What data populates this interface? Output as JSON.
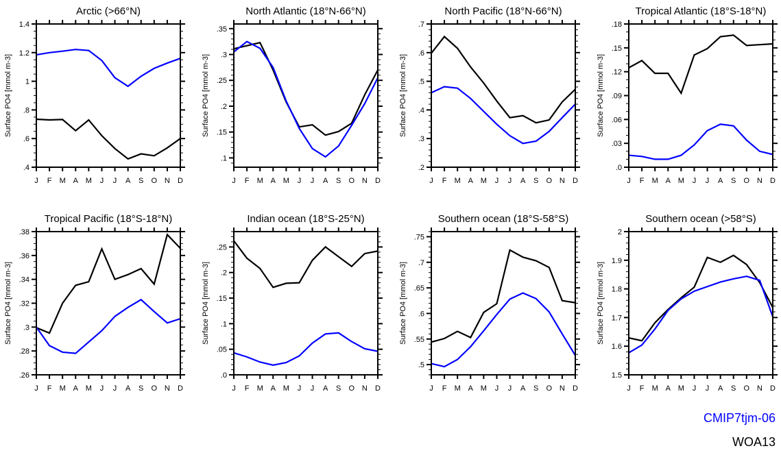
{
  "figure": {
    "months": [
      "J",
      "F",
      "M",
      "A",
      "M",
      "J",
      "J",
      "A",
      "S",
      "O",
      "N",
      "D"
    ],
    "ylabel": "Surface PO4 [mmol m-3]",
    "legend": [
      {
        "name": "CMIP7tjm-06",
        "color": "#0000ff"
      },
      {
        "name": "WOA13",
        "color": "#000000"
      }
    ]
  },
  "chart_data": [
    {
      "type": "line",
      "title": "Arctic (>66°N)",
      "xlabel": "",
      "ylabel": "Surface PO4 [mmol m-3]",
      "categories": [
        "J",
        "F",
        "M",
        "A",
        "M",
        "J",
        "J",
        "A",
        "S",
        "O",
        "N",
        "D"
      ],
      "ylim": [
        0.4,
        1.4
      ],
      "yticks": [
        0.4,
        0.6,
        0.8,
        1.0,
        1.2,
        1.4
      ],
      "ytick_labels": [
        ".4",
        ".6",
        ".8",
        "1",
        "1.2",
        "1.4"
      ],
      "yminor": 0.05,
      "series": [
        {
          "name": "CMIP7tjm-06",
          "color": "#0000ff",
          "values": [
            1.185,
            1.2,
            1.21,
            1.222,
            1.215,
            1.145,
            1.025,
            0.965,
            1.035,
            1.09,
            1.127,
            1.16
          ]
        },
        {
          "name": "WOA13",
          "color": "#000000",
          "values": [
            0.735,
            0.73,
            0.733,
            0.655,
            0.73,
            0.62,
            0.53,
            0.458,
            0.493,
            0.48,
            0.535,
            0.6
          ]
        }
      ]
    },
    {
      "type": "line",
      "title": "North Atlantic (18°N-66°N)",
      "xlabel": "",
      "ylabel": "Surface PO4 [mmol m-3]",
      "categories": [
        "J",
        "F",
        "M",
        "A",
        "M",
        "J",
        "J",
        "A",
        "S",
        "O",
        "N",
        "D"
      ],
      "ylim": [
        0.082,
        0.359
      ],
      "yticks": [
        0.1,
        0.15,
        0.2,
        0.25,
        0.3,
        0.35
      ],
      "ytick_labels": [
        ".1",
        ".15",
        ".2",
        ".25",
        ".3",
        ".35"
      ],
      "yminor": 0.01,
      "series": [
        {
          "name": "CMIP7tjm-06",
          "color": "#0000ff",
          "values": [
            0.305,
            0.325,
            0.312,
            0.275,
            0.21,
            0.157,
            0.118,
            0.102,
            0.123,
            0.163,
            0.205,
            0.255
          ]
        },
        {
          "name": "WOA13",
          "color": "#000000",
          "values": [
            0.311,
            0.317,
            0.323,
            0.27,
            0.208,
            0.16,
            0.164,
            0.144,
            0.151,
            0.167,
            0.222,
            0.27
          ]
        }
      ]
    },
    {
      "type": "line",
      "title": "North Pacific (18°N-66°N)",
      "xlabel": "",
      "ylabel": "Surface PO4 [mmol m-3]",
      "categories": [
        "J",
        "F",
        "M",
        "A",
        "M",
        "J",
        "J",
        "A",
        "S",
        "O",
        "N",
        "D"
      ],
      "ylim": [
        0.2,
        0.7
      ],
      "yticks": [
        0.2,
        0.3,
        0.4,
        0.5,
        0.6,
        0.7
      ],
      "ytick_labels": [
        ".2",
        ".3",
        ".4",
        ".5",
        ".6",
        ".7"
      ],
      "yminor": 0.02,
      "series": [
        {
          "name": "CMIP7tjm-06",
          "color": "#0000ff",
          "values": [
            0.46,
            0.481,
            0.476,
            0.44,
            0.395,
            0.35,
            0.31,
            0.283,
            0.291,
            0.325,
            0.373,
            0.42
          ]
        },
        {
          "name": "WOA13",
          "color": "#000000",
          "values": [
            0.598,
            0.656,
            0.615,
            0.55,
            0.494,
            0.431,
            0.373,
            0.38,
            0.355,
            0.365,
            0.428,
            0.472
          ]
        }
      ]
    },
    {
      "type": "line",
      "title": "Tropical Atlantic (18°S-18°N)",
      "xlabel": "",
      "ylabel": "Surface PO4 [mmol m-3]",
      "categories": [
        "J",
        "F",
        "M",
        "A",
        "M",
        "J",
        "J",
        "A",
        "S",
        "O",
        "N",
        "D"
      ],
      "ylim": [
        0.0,
        0.18
      ],
      "yticks": [
        0.0,
        0.03,
        0.06,
        0.09,
        0.12,
        0.15,
        0.18
      ],
      "ytick_labels": [
        ".0",
        ".03",
        ".06",
        ".09",
        ".12",
        ".15",
        ".18"
      ],
      "yminor": 0.01,
      "series": [
        {
          "name": "CMIP7tjm-06",
          "color": "#0000ff",
          "values": [
            0.015,
            0.0135,
            0.01,
            0.01,
            0.015,
            0.028,
            0.046,
            0.054,
            0.052,
            0.034,
            0.02,
            0.016
          ]
        },
        {
          "name": "WOA13",
          "color": "#000000",
          "values": [
            0.125,
            0.134,
            0.118,
            0.118,
            0.093,
            0.141,
            0.149,
            0.164,
            0.166,
            0.153,
            0.154,
            0.155
          ]
        }
      ]
    },
    {
      "type": "line",
      "title": "Tropical Pacific (18°S-18°N)",
      "xlabel": "",
      "ylabel": "Surface PO4 [mmol m-3]",
      "categories": [
        "J",
        "F",
        "M",
        "A",
        "M",
        "J",
        "J",
        "A",
        "S",
        "O",
        "N",
        "D"
      ],
      "ylim": [
        0.26,
        0.38
      ],
      "yticks": [
        0.26,
        0.28,
        0.3,
        0.32,
        0.34,
        0.36,
        0.38
      ],
      "ytick_labels": [
        ".26",
        ".28",
        ".3",
        ".32",
        ".34",
        ".36",
        ".38"
      ],
      "yminor": 0.005,
      "series": [
        {
          "name": "CMIP7tjm-06",
          "color": "#0000ff",
          "values": [
            0.3,
            0.2845,
            0.279,
            0.278,
            0.2875,
            0.297,
            0.309,
            0.3165,
            0.323,
            0.313,
            0.3035,
            0.307
          ]
        },
        {
          "name": "WOA13",
          "color": "#000000",
          "values": [
            0.2995,
            0.295,
            0.32,
            0.335,
            0.338,
            0.3655,
            0.34,
            0.344,
            0.349,
            0.336,
            0.3775,
            0.366
          ]
        }
      ]
    },
    {
      "type": "line",
      "title": "Indian ocean (18°S-25°N)",
      "xlabel": "",
      "ylabel": "Surface PO4 [mmol m-3]",
      "categories": [
        "J",
        "F",
        "M",
        "A",
        "M",
        "J",
        "J",
        "A",
        "S",
        "O",
        "N",
        "D"
      ],
      "ylim": [
        0.0,
        0.28
      ],
      "yticks": [
        0.0,
        0.05,
        0.1,
        0.15,
        0.2,
        0.25
      ],
      "ytick_labels": [
        ".0",
        ".05",
        ".1",
        ".15",
        ".2",
        ".25"
      ],
      "yminor": 0.01,
      "series": [
        {
          "name": "CMIP7tjm-06",
          "color": "#0000ff",
          "values": [
            0.043,
            0.035,
            0.025,
            0.019,
            0.024,
            0.037,
            0.062,
            0.08,
            0.082,
            0.065,
            0.051,
            0.046
          ]
        },
        {
          "name": "WOA13",
          "color": "#000000",
          "values": [
            0.262,
            0.228,
            0.208,
            0.171,
            0.179,
            0.18,
            0.224,
            0.25,
            0.231,
            0.212,
            0.237,
            0.242
          ]
        }
      ]
    },
    {
      "type": "line",
      "title": "Southern ocean (18°S-58°S)",
      "xlabel": "",
      "ylabel": "Surface PO4 [mmol m-3]",
      "categories": [
        "J",
        "F",
        "M",
        "A",
        "M",
        "J",
        "J",
        "A",
        "S",
        "O",
        "N",
        "D"
      ],
      "ylim": [
        0.48,
        0.76
      ],
      "yticks": [
        0.5,
        0.55,
        0.6,
        0.65,
        0.7,
        0.75
      ],
      "ytick_labels": [
        ".5",
        ".55",
        ".6",
        ".65",
        ".7",
        ".75"
      ],
      "yminor": 0.01,
      "series": [
        {
          "name": "CMIP7tjm-06",
          "color": "#0000ff",
          "values": [
            0.502,
            0.496,
            0.51,
            0.535,
            0.566,
            0.598,
            0.628,
            0.64,
            0.629,
            0.603,
            0.56,
            0.518
          ]
        },
        {
          "name": "WOA13",
          "color": "#000000",
          "values": [
            0.544,
            0.551,
            0.565,
            0.553,
            0.602,
            0.619,
            0.724,
            0.71,
            0.703,
            0.69,
            0.625,
            0.621
          ]
        }
      ]
    },
    {
      "type": "line",
      "title": "Southern ocean (>58°S)",
      "xlabel": "",
      "ylabel": "Surface PO4 [mmol m-3]",
      "categories": [
        "J",
        "F",
        "M",
        "A",
        "M",
        "J",
        "J",
        "A",
        "S",
        "O",
        "N",
        "D"
      ],
      "ylim": [
        1.5,
        2.0
      ],
      "yticks": [
        1.5,
        1.6,
        1.7,
        1.8,
        1.9,
        2.0
      ],
      "ytick_labels": [
        "1.5",
        "1.6",
        "1.7",
        "1.8",
        "1.9",
        "2"
      ],
      "yminor": 0.02,
      "series": [
        {
          "name": "CMIP7tjm-06",
          "color": "#0000ff",
          "values": [
            1.577,
            1.604,
            1.66,
            1.725,
            1.765,
            1.792,
            1.808,
            1.824,
            1.835,
            1.844,
            1.83,
            1.703
          ]
        },
        {
          "name": "WOA13",
          "color": "#000000",
          "values": [
            1.629,
            1.619,
            1.682,
            1.728,
            1.769,
            1.806,
            1.91,
            1.893,
            1.917,
            1.885,
            1.822,
            1.735
          ]
        }
      ]
    }
  ]
}
